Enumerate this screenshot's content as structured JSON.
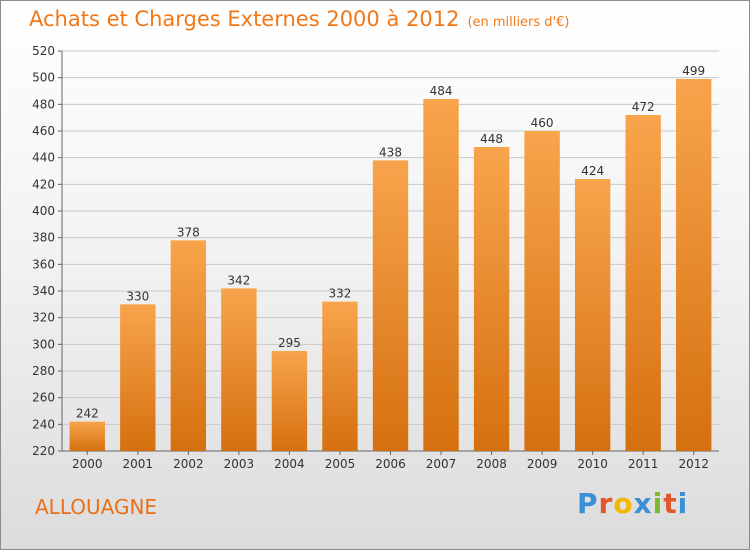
{
  "header": {
    "title": "Achats et Charges Externes 2000 à 2012",
    "unit": "(en milliers d'€)"
  },
  "footer": {
    "town": "ALLOUAGNE",
    "brand_letters": [
      "P",
      "r",
      "o",
      "x",
      "i",
      "t",
      "i"
    ]
  },
  "colors": {
    "bar_top": "#f8a44c",
    "bar_bottom": "#d5700f",
    "title": "#f07818",
    "grid": "#c8c8c8",
    "brand": [
      "#3a8fd6",
      "#e2572a",
      "#f2b700",
      "#3a8fd6",
      "#7cb82f",
      "#e2572a",
      "#3a8fd6"
    ]
  },
  "chart_data": {
    "type": "bar",
    "title": "Achats et Charges Externes 2000 à 2012",
    "subtitle": "(en milliers d'€)",
    "categories": [
      "2000",
      "2001",
      "2002",
      "2003",
      "2004",
      "2005",
      "2006",
      "2007",
      "2008",
      "2009",
      "2010",
      "2011",
      "2012"
    ],
    "values": [
      242,
      330,
      378,
      342,
      295,
      332,
      438,
      484,
      448,
      460,
      424,
      472,
      499
    ],
    "ylim": [
      220,
      520
    ],
    "yticks": [
      220,
      240,
      260,
      280,
      300,
      320,
      340,
      360,
      380,
      400,
      420,
      440,
      460,
      480,
      500,
      520
    ],
    "grid": true,
    "xlabel": "",
    "ylabel": ""
  }
}
